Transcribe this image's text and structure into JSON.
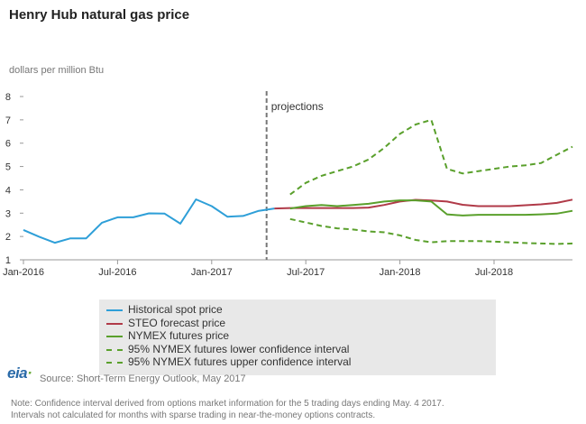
{
  "title": "Henry Hub natural gas price",
  "ylabel": "dollars per million Btu",
  "annotation": "projections",
  "source": "Source: Short-Term Energy Outlook, May 2017",
  "logo": "eia",
  "note_lines": [
    "Note: Confidence interval derived from options market information for the 5 trading days ending May. 4 2017.",
    "Intervals not calculated for months with sparse trading in near-the-money options contracts."
  ],
  "colors": {
    "historical": "#2e9fd8",
    "steo": "#b03a48",
    "nymex": "#5aa02c",
    "ci": "#5aa02c",
    "projection_line": "#777777"
  },
  "legend": [
    {
      "label": "Historical spot price",
      "color": "#2e9fd8",
      "style": "solid"
    },
    {
      "label": "STEO forecast price",
      "color": "#b03a48",
      "style": "solid"
    },
    {
      "label": "NYMEX futures price",
      "color": "#5aa02c",
      "style": "solid"
    },
    {
      "label": "95% NYMEX futures lower confidence interval",
      "color": "#5aa02c",
      "style": "dashed"
    },
    {
      "label": "95% NYMEX futures upper confidence interval",
      "color": "#5aa02c",
      "style": "dashed"
    }
  ],
  "chart_data": {
    "type": "line",
    "title": "Henry Hub natural gas price",
    "ylabel": "dollars per million Btu",
    "xlabel": "",
    "ylim": [
      1,
      8
    ],
    "yticks": [
      "1",
      "2",
      "3",
      "4",
      "5",
      "6",
      "7",
      "8"
    ],
    "xticks": [
      "Jan-2016",
      "Jul-2016",
      "Jan-2017",
      "Jul-2017",
      "Jan-2018",
      "Jul-2018"
    ],
    "x_start": "2016-01",
    "x_end": "2018-12",
    "projection_start": "2017-05",
    "series": [
      {
        "name": "Historical spot price",
        "style": "solid",
        "x": [
          "2016-01",
          "2016-02",
          "2016-03",
          "2016-04",
          "2016-05",
          "2016-06",
          "2016-07",
          "2016-08",
          "2016-09",
          "2016-10",
          "2016-11",
          "2016-12",
          "2017-01",
          "2017-02",
          "2017-03",
          "2017-04",
          "2017-05"
        ],
        "values": [
          2.28,
          1.99,
          1.73,
          1.92,
          1.92,
          2.59,
          2.82,
          2.82,
          2.99,
          2.98,
          2.55,
          3.59,
          3.3,
          2.85,
          2.88,
          3.1,
          3.2
        ]
      },
      {
        "name": "STEO forecast price",
        "style": "solid",
        "x": [
          "2017-05",
          "2017-06",
          "2017-07",
          "2017-08",
          "2017-09",
          "2017-10",
          "2017-11",
          "2017-12",
          "2018-01",
          "2018-02",
          "2018-03",
          "2018-04",
          "2018-05",
          "2018-06",
          "2018-07",
          "2018-08",
          "2018-09",
          "2018-10",
          "2018-11",
          "2018-12"
        ],
        "values": [
          3.2,
          3.22,
          3.22,
          3.22,
          3.22,
          3.22,
          3.24,
          3.35,
          3.5,
          3.57,
          3.54,
          3.5,
          3.36,
          3.3,
          3.3,
          3.3,
          3.34,
          3.38,
          3.44,
          3.58
        ]
      },
      {
        "name": "NYMEX futures price",
        "style": "solid",
        "x": [
          "2017-06",
          "2017-07",
          "2017-08",
          "2017-09",
          "2017-10",
          "2017-11",
          "2017-12",
          "2018-01",
          "2018-02",
          "2018-03",
          "2018-04",
          "2018-05",
          "2018-06",
          "2018-07",
          "2018-08",
          "2018-09",
          "2018-10",
          "2018-11",
          "2018-12"
        ],
        "values": [
          3.2,
          3.3,
          3.35,
          3.3,
          3.35,
          3.4,
          3.5,
          3.55,
          3.55,
          3.5,
          2.95,
          2.9,
          2.93,
          2.93,
          2.93,
          2.93,
          2.95,
          2.98,
          3.1
        ]
      },
      {
        "name": "95% NYMEX futures lower confidence interval",
        "style": "dashed",
        "x": [
          "2017-06",
          "2017-07",
          "2017-08",
          "2017-09",
          "2017-10",
          "2017-11",
          "2017-12",
          "2018-01",
          "2018-02",
          "2018-03",
          "2018-04",
          "2018-05",
          "2018-06",
          "2018-07",
          "2018-08",
          "2018-09",
          "2018-10",
          "2018-11",
          "2018-12"
        ],
        "values": [
          2.75,
          2.6,
          2.45,
          2.35,
          2.3,
          2.22,
          2.18,
          2.05,
          1.85,
          1.75,
          1.8,
          1.8,
          1.8,
          1.78,
          1.75,
          1.72,
          1.7,
          1.68,
          1.7
        ]
      },
      {
        "name": "95% NYMEX futures upper confidence interval",
        "style": "dashed",
        "x": [
          "2017-06",
          "2017-07",
          "2017-08",
          "2017-09",
          "2017-10",
          "2017-11",
          "2017-12",
          "2018-01",
          "2018-02",
          "2018-03",
          "2018-04",
          "2018-05",
          "2018-06",
          "2018-07",
          "2018-08",
          "2018-09",
          "2018-10",
          "2018-11",
          "2018-12"
        ],
        "values": [
          3.8,
          4.3,
          4.6,
          4.8,
          5.0,
          5.3,
          5.8,
          6.4,
          6.8,
          7.0,
          4.9,
          4.7,
          4.8,
          4.9,
          5.0,
          5.05,
          5.15,
          5.5,
          5.85
        ]
      }
    ]
  }
}
